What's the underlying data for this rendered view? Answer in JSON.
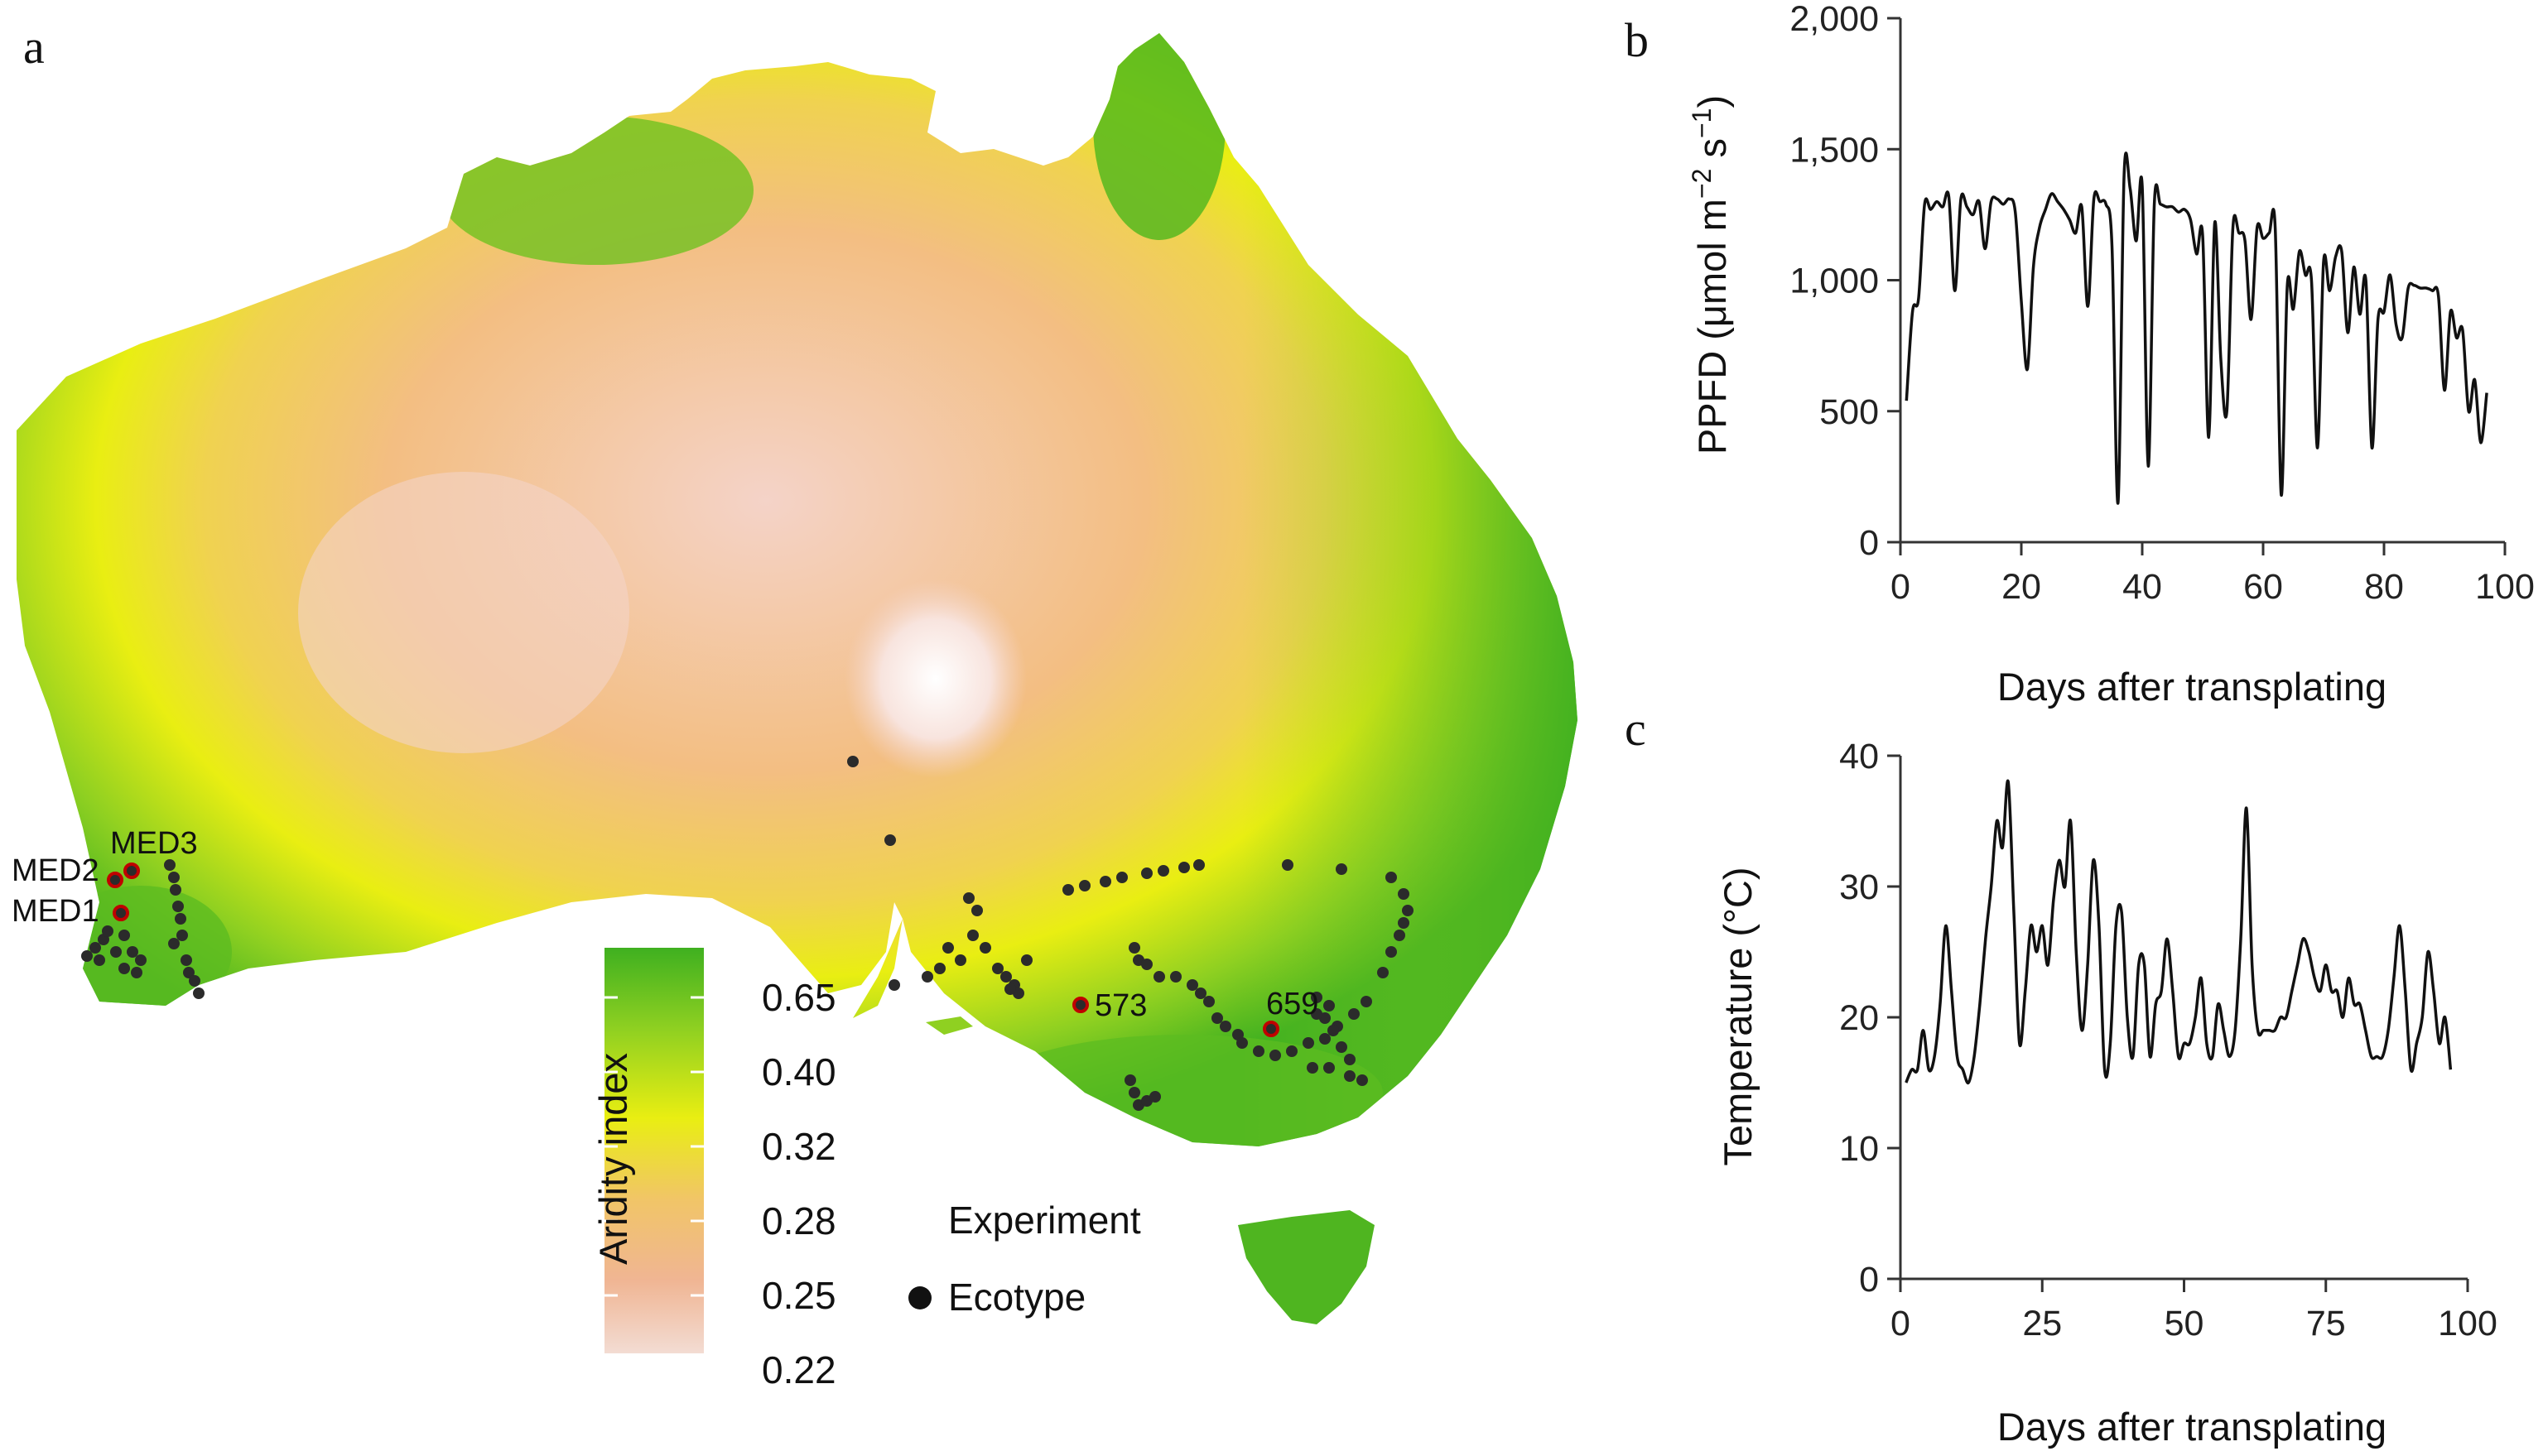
{
  "panels": {
    "a": "a",
    "b": "b",
    "c": "c"
  },
  "map": {
    "legend": {
      "title": "Aridity index",
      "ticks": [
        "0.65",
        "0.40",
        "0.32",
        "0.28",
        "0.25",
        "0.22"
      ],
      "gradient_colors": [
        "#3fb020",
        "#8fd021",
        "#e9ee12",
        "#f1c567",
        "#f0b593",
        "#f3dcd3"
      ],
      "marker_heading": "Experiment",
      "marker_label": "Ecotype"
    },
    "site_labels": {
      "med1": "MED1",
      "med2": "MED2",
      "med3": "MED3",
      "s573": "573",
      "s659": "659"
    },
    "colors": {
      "humid": "#3fb020",
      "moist": "#8fd021",
      "semi_arid": "#e9ee12",
      "arid": "#f3be82",
      "hyper_arid": "#f4d3c8",
      "desert_core": "#ffffff",
      "dot": "#2b2b2b",
      "experiment_ring": "#c00000"
    }
  },
  "chart_data": [
    {
      "type": "line",
      "panel": "b",
      "title": "",
      "xlabel": "Days after transplating",
      "ylabel": "PPFD (μmol m−2 s−1)",
      "ylabel_parts": {
        "main": "PPFD (μmol m",
        "exp1": "−2",
        "mid": " s",
        "exp2": "−1",
        "close": ")"
      },
      "xlim": [
        0,
        100
      ],
      "ylim": [
        0,
        2000
      ],
      "xticks": [
        0,
        20,
        40,
        60,
        80,
        100
      ],
      "yticks": [
        0,
        500,
        1000,
        1500,
        2000
      ],
      "ytick_labels": [
        "0",
        "500",
        "1,000",
        "1,500",
        "2,000"
      ],
      "x": [
        1,
        2,
        3,
        4,
        5,
        6,
        7,
        8,
        9,
        10,
        11,
        12,
        13,
        14,
        15,
        16,
        17,
        18,
        19,
        20,
        21,
        22,
        23,
        24,
        25,
        26,
        27,
        28,
        29,
        30,
        31,
        32,
        33,
        34,
        35,
        36,
        37,
        38,
        39,
        40,
        41,
        42,
        43,
        44,
        45,
        46,
        47,
        48,
        49,
        50,
        51,
        52,
        53,
        54,
        55,
        56,
        57,
        58,
        59,
        60,
        61,
        62,
        63,
        64,
        65,
        66,
        67,
        68,
        69,
        70,
        71,
        72,
        73,
        74,
        75,
        76,
        77,
        78,
        79,
        80,
        81,
        82,
        83,
        84,
        85,
        86,
        87,
        88,
        89,
        90,
        91,
        92,
        93,
        94,
        95,
        96,
        97
      ],
      "series": [
        {
          "values": [
            540,
            880,
            930,
            1290,
            1270,
            1300,
            1280,
            1320,
            960,
            1310,
            1280,
            1250,
            1300,
            1120,
            1300,
            1310,
            1290,
            1310,
            1260,
            920,
            660,
            1050,
            1200,
            1270,
            1330,
            1300,
            1270,
            1230,
            1180,
            1280,
            900,
            1310,
            1300,
            1290,
            1130,
            150,
            1400,
            1350,
            1150,
            1360,
            290,
            1290,
            1290,
            1280,
            1280,
            1260,
            1270,
            1230,
            1100,
            1170,
            400,
            1220,
            700,
            500,
            1200,
            1180,
            1150,
            850,
            1200,
            1160,
            1180,
            1200,
            180,
            980,
            890,
            1110,
            1020,
            1000,
            360,
            1070,
            960,
            1090,
            1110,
            800,
            1050,
            870,
            1000,
            360,
            850,
            880,
            1020,
            830,
            780,
            970,
            980,
            970,
            970,
            960,
            940,
            580,
            880,
            780,
            810,
            500,
            620,
            380,
            570
          ]
        }
      ]
    },
    {
      "type": "line",
      "panel": "c",
      "title": "",
      "xlabel": "Days after transplating",
      "ylabel": "Temperature (°C)",
      "xlim": [
        0,
        100
      ],
      "ylim": [
        0,
        40
      ],
      "xticks": [
        0,
        25,
        50,
        75,
        100
      ],
      "yticks": [
        0,
        10,
        20,
        30,
        40
      ],
      "ytick_labels": [
        "0",
        "10",
        "20",
        "30",
        "40"
      ],
      "x": [
        1,
        2,
        3,
        4,
        5,
        6,
        7,
        8,
        9,
        10,
        11,
        12,
        13,
        14,
        15,
        16,
        17,
        18,
        19,
        20,
        21,
        22,
        23,
        24,
        25,
        26,
        27,
        28,
        29,
        30,
        31,
        32,
        33,
        34,
        35,
        36,
        37,
        38,
        39,
        40,
        41,
        42,
        43,
        44,
        45,
        46,
        47,
        48,
        49,
        50,
        51,
        52,
        53,
        54,
        55,
        56,
        57,
        58,
        59,
        60,
        61,
        62,
        63,
        64,
        65,
        66,
        67,
        68,
        69,
        70,
        71,
        72,
        73,
        74,
        75,
        76,
        77,
        78,
        79,
        80,
        81,
        82,
        83,
        84,
        85,
        86,
        87,
        88,
        89,
        90,
        91,
        92,
        93,
        94,
        95,
        96,
        97
      ],
      "series": [
        {
          "values": [
            15,
            16,
            16,
            19,
            16,
            17,
            21,
            27,
            22,
            17,
            16,
            15,
            17,
            21,
            26,
            30,
            35,
            33,
            38,
            28,
            18,
            22,
            27,
            25,
            27,
            24,
            29,
            32,
            30,
            35,
            25,
            19,
            24,
            32,
            27,
            16,
            18,
            27,
            28,
            20,
            17,
            24,
            24,
            17,
            21,
            22,
            26,
            22,
            17,
            18,
            18,
            20,
            23,
            18,
            17,
            21,
            19,
            17,
            19,
            26,
            36,
            24,
            19,
            19,
            19,
            19,
            20,
            20,
            22,
            24,
            26,
            25,
            23,
            22,
            24,
            22,
            22,
            20,
            23,
            21,
            21,
            19,
            17,
            17,
            17,
            19,
            23,
            27,
            22,
            16,
            18,
            20,
            25,
            22,
            18,
            20,
            16
          ]
        }
      ]
    }
  ]
}
